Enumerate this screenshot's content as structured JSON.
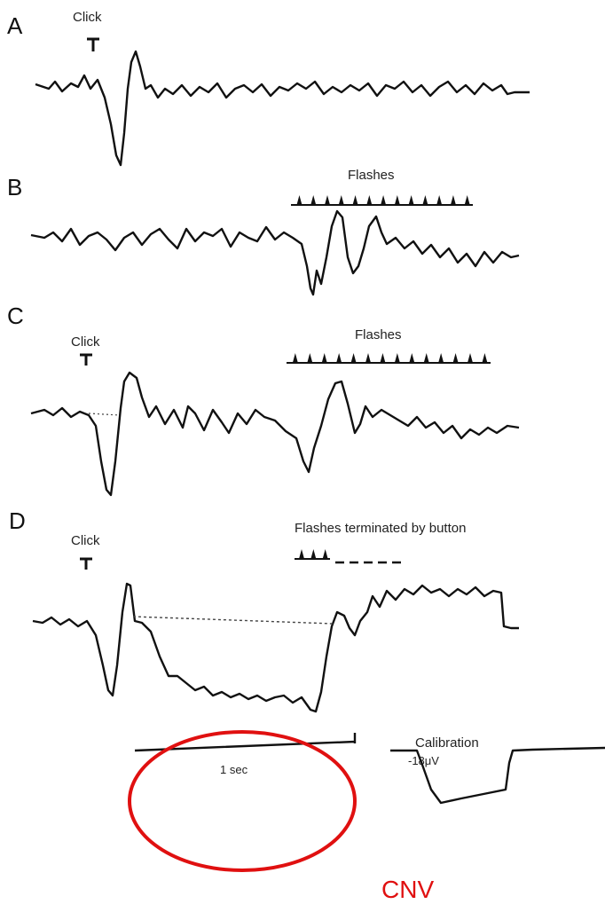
{
  "panels": [
    {
      "label": "A",
      "click": "Click"
    },
    {
      "label": "B",
      "flashes": "Flashes"
    },
    {
      "label": "C",
      "click": "Click",
      "flashes": "Flashes"
    },
    {
      "label": "D",
      "click": "Click",
      "flashes": "Flashes terminated by button"
    }
  ],
  "calibration": {
    "title": "Calibration",
    "time": "1 sec",
    "voltage": "-18μV"
  },
  "annotation": "CNV"
}
